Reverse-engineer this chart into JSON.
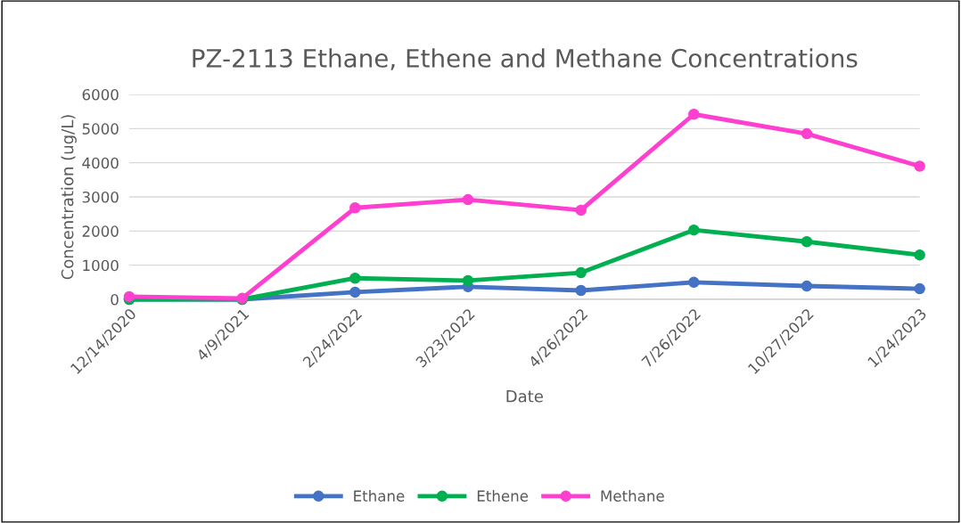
{
  "chart_data": {
    "type": "line",
    "title": "PZ-2113 Ethane, Ethene and Methane Concentrations",
    "xlabel": "Date",
    "ylabel": "Concentration (ug/L)",
    "categories": [
      "12/14/2020",
      "4/9/2021",
      "2/24/2022",
      "3/23/2022",
      "4/26/2022",
      "7/26/2022",
      "10/27/2022",
      "1/24/2023"
    ],
    "series": [
      {
        "name": "Ethane",
        "color": "#4472c4",
        "values": [
          0,
          0,
          210,
          370,
          260,
          500,
          390,
          310
        ]
      },
      {
        "name": "Ethene",
        "color": "#00b050",
        "values": [
          0,
          0,
          620,
          550,
          780,
          2030,
          1690,
          1300
        ]
      },
      {
        "name": "Methane",
        "color": "#ff3fd0",
        "values": [
          80,
          30,
          2680,
          2920,
          2610,
          5420,
          4850,
          3900
        ]
      }
    ],
    "ylim": [
      0,
      6000
    ],
    "yticks": [
      0,
      1000,
      2000,
      3000,
      4000,
      5000,
      6000
    ],
    "grid": "y",
    "legend": "bottom",
    "marker": "circle",
    "line_style": "solid"
  }
}
